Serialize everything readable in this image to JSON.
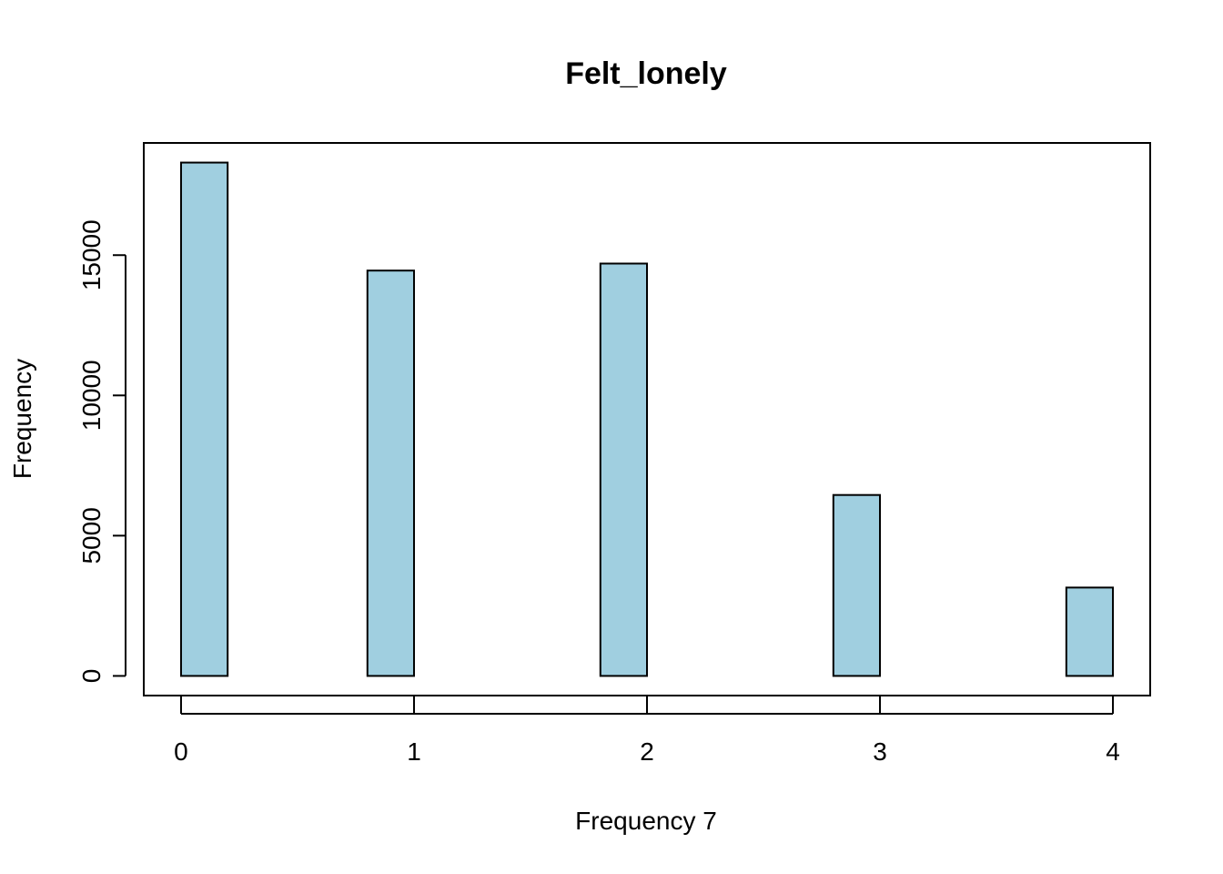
{
  "chart_data": {
    "type": "bar",
    "title": "Felt_lonely",
    "xlabel": "Frequency 7",
    "ylabel": "Frequency",
    "bar_color": "#a0cfe0",
    "border_color": "#000000",
    "xlim": [
      -0.16,
      4.16
    ],
    "ylim": [
      -700,
      19000
    ],
    "x_ticks": [
      0,
      1,
      2,
      3,
      4
    ],
    "y_ticks": [
      0,
      5000,
      10000,
      15000
    ],
    "bin_width": 0.2,
    "bins": [
      {
        "start": 0.0,
        "end": 0.2,
        "count": 18300
      },
      {
        "start": 0.2,
        "end": 0.4,
        "count": 0
      },
      {
        "start": 0.4,
        "end": 0.6,
        "count": 0
      },
      {
        "start": 0.6,
        "end": 0.8,
        "count": 0
      },
      {
        "start": 0.8,
        "end": 1.0,
        "count": 14450
      },
      {
        "start": 1.0,
        "end": 1.2,
        "count": 0
      },
      {
        "start": 1.2,
        "end": 1.4,
        "count": 0
      },
      {
        "start": 1.4,
        "end": 1.6,
        "count": 0
      },
      {
        "start": 1.6,
        "end": 1.8,
        "count": 0
      },
      {
        "start": 1.8,
        "end": 2.0,
        "count": 14700
      },
      {
        "start": 2.0,
        "end": 2.2,
        "count": 0
      },
      {
        "start": 2.2,
        "end": 2.4,
        "count": 0
      },
      {
        "start": 2.4,
        "end": 2.6,
        "count": 0
      },
      {
        "start": 2.6,
        "end": 2.8,
        "count": 0
      },
      {
        "start": 2.8,
        "end": 3.0,
        "count": 6450
      },
      {
        "start": 3.0,
        "end": 3.2,
        "count": 0
      },
      {
        "start": 3.2,
        "end": 3.4,
        "count": 0
      },
      {
        "start": 3.4,
        "end": 3.6,
        "count": 0
      },
      {
        "start": 3.6,
        "end": 3.8,
        "count": 0
      },
      {
        "start": 3.8,
        "end": 4.0,
        "count": 3150
      }
    ]
  }
}
